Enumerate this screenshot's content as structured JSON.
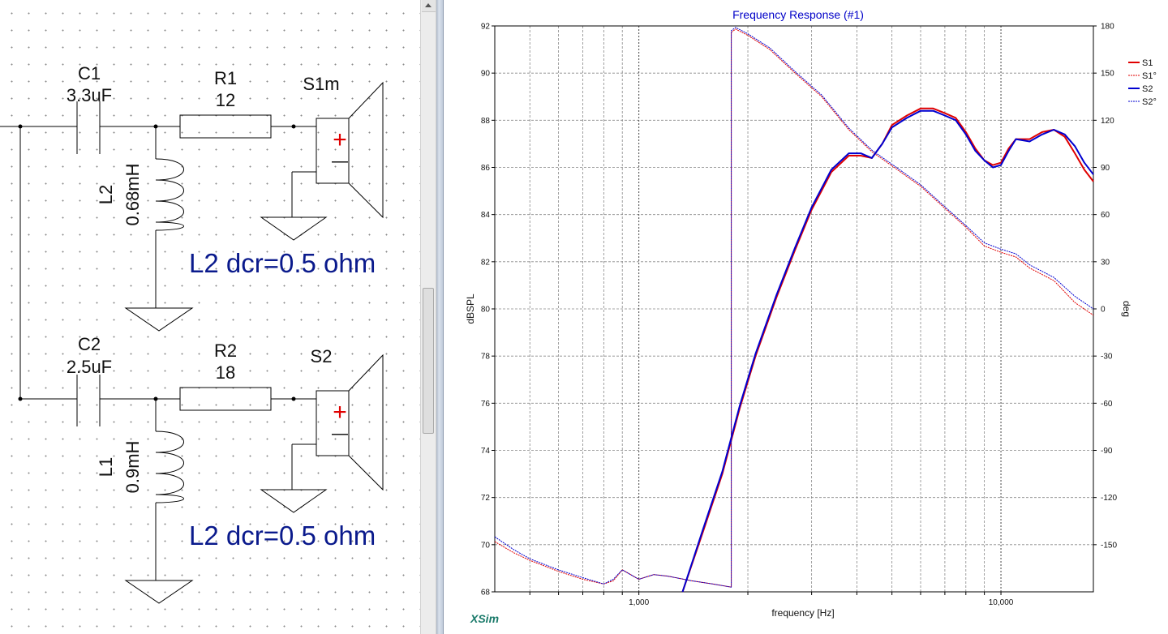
{
  "schematic": {
    "c1": {
      "name": "C1",
      "value": "3.3uF"
    },
    "r1": {
      "name": "R1",
      "value": "12"
    },
    "s1": {
      "name": "S1m"
    },
    "l2": {
      "name": "L2",
      "value": "0.68mH"
    },
    "note1": "L2 dcr=0.5 ohm",
    "c2": {
      "name": "C2",
      "value": "2.5uF"
    },
    "r2": {
      "name": "R2",
      "value": "18"
    },
    "s2": {
      "name": "S2"
    },
    "l1": {
      "name": "L1",
      "value": "0.9mH"
    },
    "note2": "L2 dcr=0.5 ohm",
    "plus_symbol": "+",
    "minus_symbol": "—"
  },
  "graph": {
    "brand": "XSim",
    "colors": {
      "s1": "#e00000",
      "s2": "#0000d0",
      "title": "#0000c8",
      "grid": "#888888"
    }
  },
  "chart_data": {
    "type": "line",
    "title": "Frequency Response (#1)",
    "xlabel": "frequency [Hz]",
    "ylabel": "dBSPL",
    "y2label": "deg",
    "x_scale": "log",
    "xlim": [
      400,
      18000
    ],
    "ylim": [
      68,
      92
    ],
    "y2lim": [
      -180,
      180
    ],
    "x_tick_labels": [
      "1,000",
      "10,000"
    ],
    "x_ticks": [
      1000,
      10000
    ],
    "y_ticks": [
      68,
      70,
      72,
      74,
      76,
      78,
      80,
      82,
      84,
      86,
      88,
      90,
      92
    ],
    "y2_ticks": [
      180,
      150,
      120,
      90,
      60,
      30,
      0,
      -30,
      -60,
      -90,
      -120,
      -150
    ],
    "grid": true,
    "legend_position": "top-right",
    "series": [
      {
        "name": "S1",
        "axis": "left",
        "style": "solid",
        "color": "#e00000",
        "x": [
          1320,
          1500,
          1700,
          1900,
          2100,
          2400,
          2700,
          3000,
          3400,
          3800,
          4100,
          4400,
          4700,
          5000,
          5500,
          6000,
          6500,
          7000,
          7500,
          8000,
          8500,
          9000,
          9500,
          10000,
          10500,
          11000,
          12000,
          13000,
          14000,
          15000,
          16000,
          17000,
          18000
        ],
        "values": [
          68.0,
          70.5,
          73.0,
          75.8,
          78.0,
          80.5,
          82.5,
          84.2,
          85.8,
          86.5,
          86.5,
          86.4,
          87.0,
          87.8,
          88.2,
          88.5,
          88.5,
          88.3,
          88.1,
          87.5,
          86.8,
          86.3,
          86.1,
          86.2,
          86.8,
          87.2,
          87.2,
          87.5,
          87.6,
          87.3,
          86.6,
          85.9,
          85.4
        ]
      },
      {
        "name": "S1°",
        "axis": "right",
        "style": "dashed",
        "color": "#e00000",
        "x": [
          400,
          450,
          500,
          600,
          700,
          800,
          850,
          900,
          1000,
          1100,
          1200,
          1400,
          1600,
          1800,
          1800,
          1850,
          2000,
          2300,
          2700,
          3200,
          3800,
          4400,
          5000,
          6000,
          7000,
          8000,
          9000,
          10000,
          11000,
          12000,
          14000,
          16000,
          18000
        ],
        "values": [
          -148,
          -155,
          -160,
          -167,
          -172,
          -175,
          -173,
          -166,
          -172,
          -169,
          -170,
          -173,
          -175,
          -177,
          176,
          178,
          174,
          165,
          150,
          135,
          114,
          100,
          91,
          78,
          64,
          52,
          40,
          36,
          33,
          26,
          18,
          4,
          -4
        ]
      },
      {
        "name": "S2",
        "axis": "left",
        "style": "solid",
        "color": "#0000d0",
        "x": [
          1320,
          1500,
          1700,
          1900,
          2100,
          2400,
          2700,
          3000,
          3400,
          3800,
          4100,
          4400,
          4700,
          5000,
          5500,
          6000,
          6500,
          7000,
          7500,
          8000,
          8500,
          9000,
          9500,
          10000,
          10500,
          11000,
          12000,
          13000,
          14000,
          15000,
          16000,
          17000,
          18000
        ],
        "values": [
          68.0,
          70.6,
          73.1,
          75.9,
          78.1,
          80.6,
          82.6,
          84.3,
          85.9,
          86.6,
          86.6,
          86.4,
          87.0,
          87.7,
          88.1,
          88.4,
          88.4,
          88.2,
          88.0,
          87.4,
          86.7,
          86.3,
          86.0,
          86.1,
          86.7,
          87.2,
          87.1,
          87.4,
          87.6,
          87.4,
          86.9,
          86.2,
          85.7
        ]
      },
      {
        "name": "S2°",
        "axis": "right",
        "style": "dashed",
        "color": "#0000d0",
        "x": [
          400,
          450,
          500,
          600,
          700,
          800,
          850,
          900,
          1000,
          1100,
          1200,
          1400,
          1600,
          1800,
          1800,
          1850,
          2000,
          2300,
          2700,
          3200,
          3800,
          4400,
          5000,
          6000,
          7000,
          8000,
          9000,
          10000,
          11000,
          12000,
          14000,
          16000,
          18000
        ],
        "values": [
          -145,
          -153,
          -159,
          -166,
          -171,
          -175,
          -172,
          -166,
          -172,
          -169,
          -170,
          -173,
          -175,
          -177,
          177,
          179,
          175,
          166,
          151,
          136,
          115,
          101,
          92,
          79,
          65,
          53,
          42,
          38,
          35,
          28,
          20,
          8,
          0
        ]
      }
    ]
  }
}
